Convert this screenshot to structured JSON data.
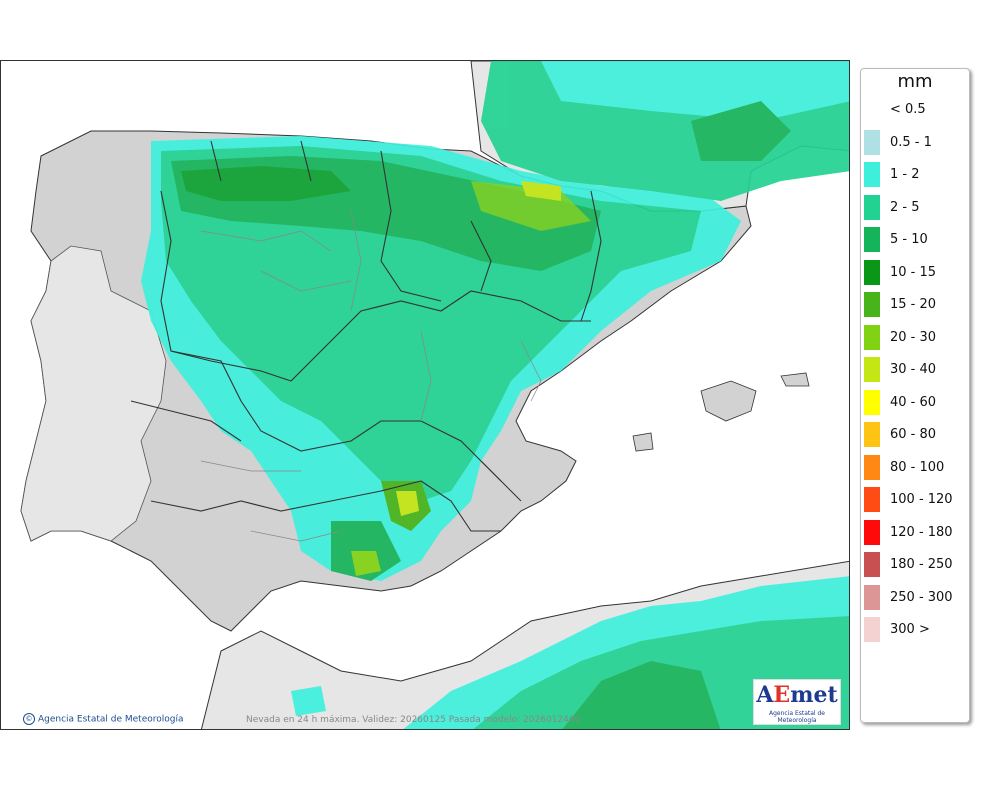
{
  "legend": {
    "unit": "mm",
    "items": [
      {
        "label": "< 0.5",
        "color": "#ffffff"
      },
      {
        "label": "0.5 - 1",
        "color": "#aee0e4"
      },
      {
        "label": "1 - 2",
        "color": "#3ef0dc"
      },
      {
        "label": "2 - 5",
        "color": "#22d292"
      },
      {
        "label": "5 - 10",
        "color": "#16b45a"
      },
      {
        "label": "10 - 15",
        "color": "#0a9616"
      },
      {
        "label": "15 - 20",
        "color": "#46b41a"
      },
      {
        "label": "20 - 30",
        "color": "#82d214"
      },
      {
        "label": "30 - 40",
        "color": "#c3e614"
      },
      {
        "label": "40 - 60",
        "color": "#ffff00"
      },
      {
        "label": "60 - 80",
        "color": "#ffc314"
      },
      {
        "label": "80 - 100",
        "color": "#ff8714"
      },
      {
        "label": "100 - 120",
        "color": "#ff4b14"
      },
      {
        "label": "120 - 180",
        "color": "#ff0a0a"
      },
      {
        "label": "180 - 250",
        "color": "#c85050"
      },
      {
        "label": "250 - 300",
        "color": "#dc9696"
      },
      {
        "label": "300 >",
        "color": "#f5d2d2"
      }
    ]
  },
  "map": {
    "credit": "Agencia Estatal de Meteorología",
    "validity_text": "Nevada en 24 h máxima. Validez: 20260125 Pasada modelo: 2026012400",
    "logo_text": "AEmet",
    "logo_sub": "Agencia Estatal de Meteorología",
    "colors": {
      "land": "#d2d2d2",
      "land_light": "#e6e6e6",
      "sea": "#ffffff",
      "border": "#333333",
      "inner_border": "#888888"
    }
  }
}
